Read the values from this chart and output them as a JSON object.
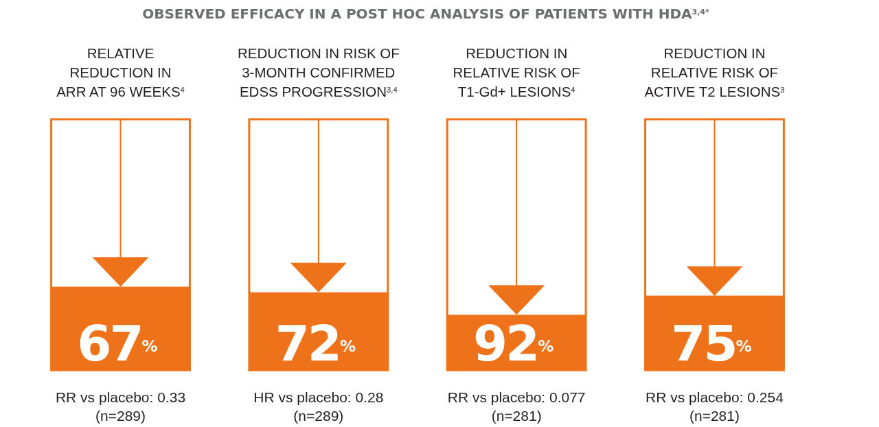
{
  "chart_data": {
    "type": "other",
    "title": "OBSERVED EFFICACY IN A POST HOC ANALYSIS OF PATIENTS WITH HDA$^{3,4*}$",
    "categories": [
      "RELATIVE\nREDUCTION IN\nARR AT 96 WEEKS$^{4}$",
      "REDUCTION IN RISK OF\n3-MONTH CONFIRMED\nEDSS PROGRESSION$^{3,4}$",
      "REDUCTION IN\nRELATIVE RISK OF\nT1-Gd+ LESIONS$^{4}$",
      "REDUCTION IN\nRELATIVE RISK OF\nACTIVE T2 LESIONS$^{3}$"
    ],
    "values": [
      67,
      72,
      92,
      75
    ],
    "value_labels": [
      "67$^{%}$",
      "72$^{%}$",
      "92$^{%}$",
      "75$^{%}$"
    ],
    "color": "#ee7219",
    "annotations": [
      "RR vs placebo: 0.33",
      "(n=289)",
      "HR vs placebo: 0.28",
      "(n=289)",
      "RR vs placebo: 0.077",
      "(n=281)",
      "RR vs placebo: 0.254",
      "(n=281)"
    ]
  }
}
